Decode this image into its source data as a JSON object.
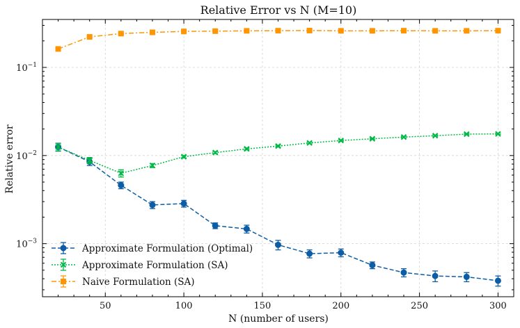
{
  "chart_data": {
    "type": "line",
    "title": "Relative Error vs N (M=10)",
    "xlabel": "N (number of users)",
    "ylabel": "Relative error",
    "yscale": "log",
    "xlim": [
      10,
      310
    ],
    "ylim": [
      0.00025,
      0.35
    ],
    "grid": true,
    "legend_position": "lower-left",
    "x_ticks": [
      50,
      100,
      150,
      200,
      250,
      300
    ],
    "x_tick_labels": [
      "50",
      "100",
      "150",
      "200",
      "250",
      "300"
    ],
    "y_major_ticks": [
      0.001,
      0.01,
      0.1
    ],
    "y_tick_labels": [
      {
        "base": "10",
        "exp": "−3"
      },
      {
        "base": "10",
        "exp": "−2"
      },
      {
        "base": "10",
        "exp": "−1"
      }
    ],
    "x": [
      20,
      40,
      60,
      80,
      100,
      120,
      140,
      160,
      180,
      200,
      220,
      240,
      260,
      280,
      300
    ],
    "series": [
      {
        "name": "Approximate Formulation (Optimal)",
        "color": "#0c5da5",
        "linestyle": "dashed",
        "marker": "circle",
        "values": [
          0.0125,
          0.0085,
          0.0046,
          0.00275,
          0.00285,
          0.0016,
          0.00147,
          0.00097,
          0.00077,
          0.00079,
          0.00057,
          0.00047,
          0.00043,
          0.00042,
          0.00038
        ],
        "errors": [
          0.0013,
          0.0008,
          0.0004,
          0.00025,
          0.00025,
          0.00012,
          0.00015,
          0.00012,
          8e-05,
          8e-05,
          5e-05,
          5e-05,
          6e-05,
          5e-05,
          5e-05
        ]
      },
      {
        "name": "Approximate Formulation (SA)",
        "color": "#00b945",
        "linestyle": "dotted",
        "marker": "x",
        "values": [
          0.0125,
          0.0088,
          0.0063,
          0.0077,
          0.0097,
          0.0108,
          0.0119,
          0.0128,
          0.0139,
          0.0148,
          0.0155,
          0.0162,
          0.0168,
          0.0175,
          0.0176
        ],
        "errors": [
          0.0012,
          0.0007,
          0.0006,
          0.0004,
          0.0003,
          0.0003,
          0.0003,
          0.0003,
          0.0003,
          0.0003,
          0.0003,
          0.0003,
          0.0003,
          0.0003,
          0.0003
        ]
      },
      {
        "name": "Naive Formulation (SA)",
        "color": "#ff9500",
        "linestyle": "dashdot",
        "marker": "square",
        "values": [
          0.162,
          0.222,
          0.242,
          0.25,
          0.256,
          0.258,
          0.26,
          0.261,
          0.262,
          0.26,
          0.26,
          0.261,
          0.26,
          0.26,
          0.261
        ],
        "errors": [
          0.005,
          0.005,
          0.004,
          0.003,
          0.003,
          0.003,
          0.003,
          0.003,
          0.003,
          0.003,
          0.003,
          0.003,
          0.003,
          0.003,
          0.003
        ]
      }
    ]
  }
}
